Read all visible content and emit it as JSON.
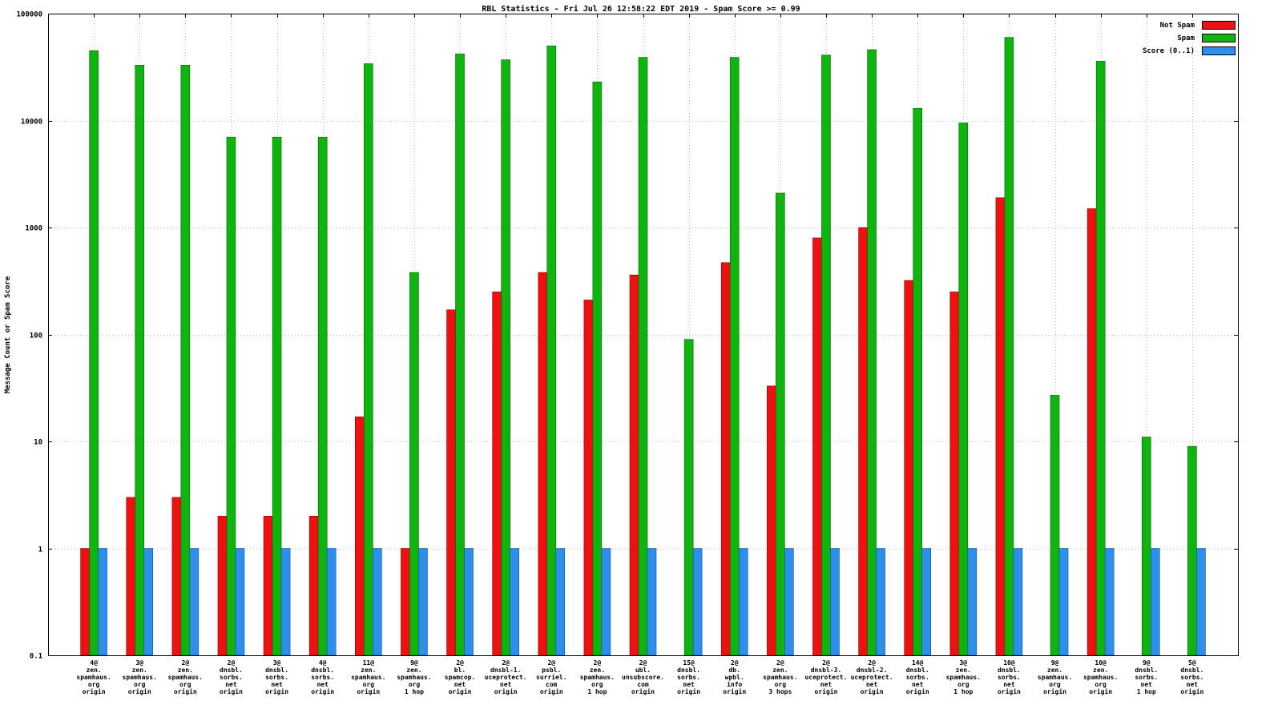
{
  "title": "RBL Statistics - Fri Jul 26 12:58:22 EDT 2019 - Spam Score >= 0.99",
  "ylabel": "Message Count or Spam Score",
  "legend": [
    {
      "label": "Not Spam",
      "color": "#ee1111"
    },
    {
      "label": "Spam",
      "color": "#10b410"
    },
    {
      "label": "Score (0..1)",
      "color": "#2e8fea"
    }
  ],
  "chart_data": {
    "type": "bar",
    "scale": "log",
    "ylim": [
      0.1,
      100000
    ],
    "yticks": [
      0.1,
      1,
      10,
      100,
      1000,
      10000,
      100000
    ],
    "grid": true,
    "legend_position": "top-right",
    "categories": [
      [
        "4@",
        "zen.",
        "spamhaus.",
        "org",
        "origin"
      ],
      [
        "3@",
        "zen.",
        "spamhaus.",
        "org",
        "origin"
      ],
      [
        "2@",
        "zen.",
        "spamhaus.",
        "org",
        "origin"
      ],
      [
        "2@",
        "dnsbl.",
        "sorbs.",
        "net",
        "origin"
      ],
      [
        "3@",
        "dnsbl.",
        "sorbs.",
        "net",
        "origin"
      ],
      [
        "4@",
        "dnsbl.",
        "sorbs.",
        "net",
        "origin"
      ],
      [
        "11@",
        "zen.",
        "spamhaus.",
        "org",
        "origin"
      ],
      [
        "9@",
        "zen.",
        "spamhaus.",
        "org",
        "1 hop"
      ],
      [
        "2@",
        "bl.",
        "spamcop.",
        "net",
        "origin"
      ],
      [
        "2@",
        "dnsbl-1.",
        "uceprotect.",
        "net",
        "origin"
      ],
      [
        "2@",
        "psbl.",
        "surriel.",
        "com",
        "origin"
      ],
      [
        "2@",
        "zen.",
        "spamhaus.",
        "org",
        "1 hop"
      ],
      [
        "2@",
        "ubl.",
        "unsubscore.",
        "com",
        "origin"
      ],
      [
        "15@",
        "dnsbl.",
        "sorbs.",
        "net",
        "origin"
      ],
      [
        "2@",
        "db.",
        "wpbl.",
        "info",
        "origin"
      ],
      [
        "2@",
        "zen.",
        "spamhaus.",
        "org",
        "3 hops"
      ],
      [
        "2@",
        "dnsbl-3.",
        "uceprotect.",
        "net",
        "origin"
      ],
      [
        "2@",
        "dnsbl-2.",
        "uceprotect.",
        "net",
        "origin"
      ],
      [
        "14@",
        "dnsbl.",
        "sorbs.",
        "net",
        "origin"
      ],
      [
        "3@",
        "zen.",
        "spamhaus.",
        "org",
        "1 hop"
      ],
      [
        "10@",
        "dnsbl.",
        "sorbs.",
        "net",
        "origin"
      ],
      [
        "9@",
        "zen.",
        "spamhaus.",
        "org",
        "origin"
      ],
      [
        "10@",
        "zen.",
        "spamhaus.",
        "org",
        "origin"
      ],
      [
        "9@",
        "dnsbl.",
        "sorbs.",
        "net",
        "1 hop"
      ],
      [
        "5@",
        "dnsbl.",
        "sorbs.",
        "net",
        "origin"
      ]
    ],
    "series": [
      {
        "name": "Not Spam",
        "color": "#ee1111",
        "border": "#8f0000",
        "values": [
          1,
          3,
          3,
          2,
          2,
          2,
          17,
          1,
          170,
          250,
          380,
          210,
          360,
          null,
          470,
          33,
          800,
          1000,
          320,
          250,
          1900,
          null,
          1500,
          null,
          null
        ]
      },
      {
        "name": "Spam",
        "color": "#10b410",
        "border": "#006400",
        "values": [
          45000,
          33000,
          33000,
          7000,
          7000,
          7000,
          34000,
          380,
          42000,
          37000,
          50000,
          23000,
          39000,
          90,
          39000,
          2100,
          41000,
          46000,
          13000,
          9500,
          60000,
          27,
          36000,
          11,
          9
        ]
      },
      {
        "name": "Score (0..1)",
        "color": "#2e8fea",
        "border": "#104f99",
        "values": [
          1,
          1,
          1,
          1,
          1,
          1,
          1,
          1,
          1,
          1,
          1,
          1,
          1,
          1,
          1,
          1,
          1,
          1,
          1,
          1,
          1,
          1,
          1,
          1,
          1
        ]
      }
    ]
  }
}
